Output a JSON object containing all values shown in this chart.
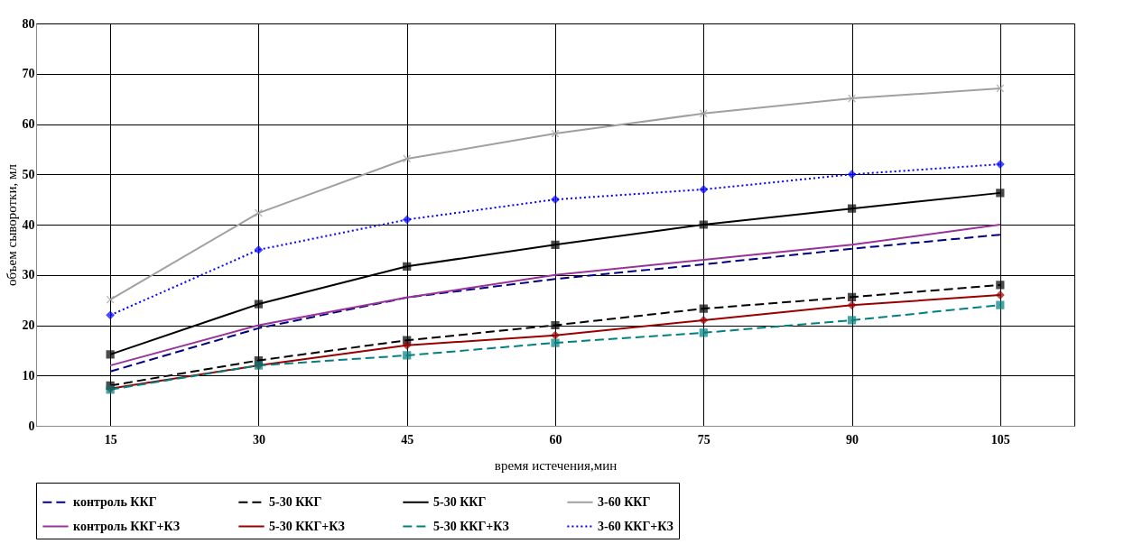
{
  "chart_data": {
    "type": "line",
    "xlabel": "время истечения,мин",
    "ylabel": "объем сыворотки, мл",
    "categories": [
      "15",
      "30",
      "45",
      "60",
      "75",
      "90",
      "105"
    ],
    "ylim": [
      0,
      80
    ],
    "yticks": [
      0,
      10,
      20,
      30,
      40,
      50,
      60,
      70,
      80
    ],
    "grid": true,
    "legend": "bottom",
    "series": [
      {
        "name": "контроль ККГ",
        "color": "#000080",
        "line_style": "dashed",
        "marker": "none",
        "values": [
          10.8,
          19.4,
          25.5,
          29.2,
          32.1,
          35.2,
          38
        ]
      },
      {
        "name": "5-30 ККГ",
        "color": "#000000",
        "line_style": "dashed",
        "marker": "square",
        "values": [
          8,
          13,
          17,
          20,
          23.3,
          25.6,
          28
        ]
      },
      {
        "name": "5-30 ККГ",
        "color": "#000000",
        "line_style": "solid",
        "marker": "square",
        "values": [
          14.2,
          24.2,
          31.7,
          36,
          40,
          43.2,
          46.3
        ]
      },
      {
        "name": "3-60 ККГ",
        "color": "#a0a0a0",
        "line_style": "solid",
        "marker": "cross",
        "values": [
          25.1,
          42.3,
          53.1,
          58.1,
          62.1,
          65.1,
          67.1
        ]
      },
      {
        "name": "контроль ККГ+КЗ",
        "color": "#993399",
        "line_style": "solid",
        "marker": "none",
        "values": [
          12,
          20,
          25.5,
          30,
          33,
          36,
          40
        ]
      },
      {
        "name": "5-30 ККГ+КЗ",
        "color": "#990000",
        "line_style": "solid",
        "marker": "diamond",
        "values": [
          7.4,
          12,
          16,
          18,
          21,
          24,
          26
        ]
      },
      {
        "name": "5-30 ККГ+КЗ",
        "color": "#008080",
        "line_style": "dashed",
        "marker": "square",
        "values": [
          7.2,
          12,
          14,
          16.5,
          18.5,
          21,
          24
        ]
      },
      {
        "name": "3-60 ККГ+КЗ",
        "color": "#0000ff",
        "line_style": "dotted",
        "marker": "diamond",
        "values": [
          22,
          35,
          41,
          45,
          47,
          50,
          52
        ]
      }
    ]
  }
}
